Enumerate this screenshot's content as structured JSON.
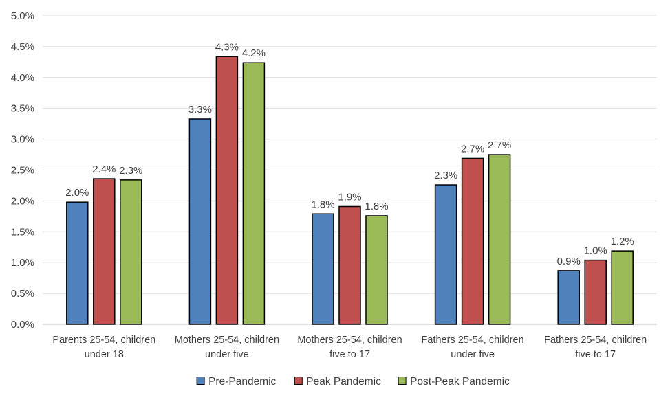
{
  "chart_data": {
    "type": "bar",
    "title": "",
    "xlabel": "",
    "ylabel": "",
    "ylim": [
      0,
      0.05
    ],
    "y_tick_step": 0.005,
    "y_tick_format": "percent_1dp",
    "grid": "horizontal",
    "legend_position": "bottom",
    "categories": [
      [
        "Parents 25-54, children",
        "under 18"
      ],
      [
        "Mothers 25-54, children",
        "under five"
      ],
      [
        "Mothers 25-54, children",
        "five to 17"
      ],
      [
        "Fathers 25-54, children",
        "under five"
      ],
      [
        "Fathers 25-54, children",
        "five to 17"
      ]
    ],
    "series": [
      {
        "name": "Pre-Pandemic",
        "color": "#4F81BD",
        "values": [
          0.0198,
          0.0333,
          0.0179,
          0.0226,
          0.0087
        ],
        "labels": [
          "2.0%",
          "3.3%",
          "1.8%",
          "2.3%",
          "0.9%"
        ]
      },
      {
        "name": "Peak Pandemic",
        "color": "#C0504D",
        "values": [
          0.0236,
          0.0434,
          0.0191,
          0.0269,
          0.0104
        ],
        "labels": [
          "2.4%",
          "4.3%",
          "1.9%",
          "2.7%",
          "1.0%"
        ]
      },
      {
        "name": "Post-Peak Pandemic",
        "color": "#9BBB59",
        "values": [
          0.0234,
          0.0424,
          0.0176,
          0.0275,
          0.0119
        ],
        "labels": [
          "2.3%",
          "4.2%",
          "1.8%",
          "2.7%",
          "1.2%"
        ]
      }
    ]
  }
}
